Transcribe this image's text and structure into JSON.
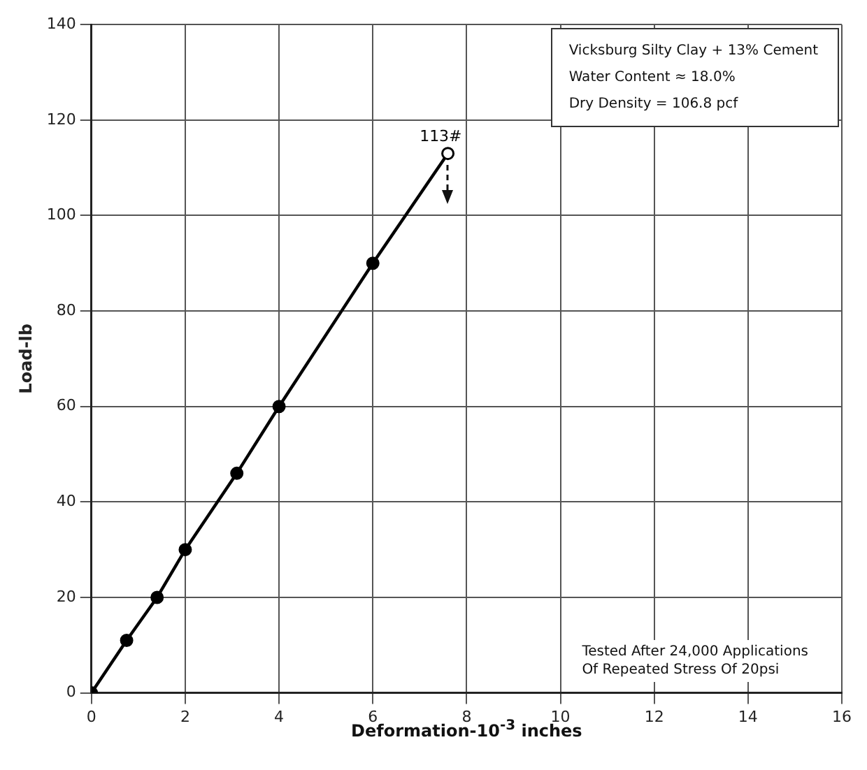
{
  "chart_data": {
    "type": "line",
    "xlabel": "Deformation-10$^{-3}$ inches",
    "ylabel": "Load-lb",
    "x": [
      0,
      0.75,
      1.4,
      2,
      3.1,
      4,
      6,
      7.6
    ],
    "series": [
      {
        "color": "#000000",
        "values": [
          0,
          11,
          20,
          30,
          46,
          60,
          90,
          113
        ]
      }
    ],
    "xlim": [
      0,
      16
    ],
    "xticks": [
      0,
      2,
      4,
      6,
      8,
      10,
      12,
      14,
      16
    ],
    "ylim": [
      0,
      140
    ],
    "yticks": [
      0,
      20,
      40,
      60,
      80,
      100,
      120,
      140
    ],
    "grid": true,
    "legend": false,
    "marker": "circle",
    "line_style": "solid",
    "annotations": [
      "Vicksburg Silty Clay + 13% Cement",
      "Water Content ≈ 18.0%",
      "Dry Density = 106.8 pcf",
      "Tested After 24,000 Applications\nOf Repeated Stress Of 20psi",
      {
        "text": "113#",
        "x": 7.6,
        "y": 113
      }
    ]
  }
}
